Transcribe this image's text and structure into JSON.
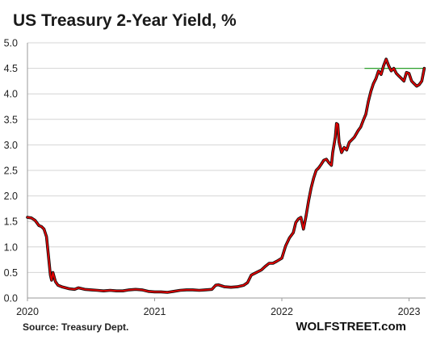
{
  "chart_data": {
    "type": "line",
    "title": "US Treasury 2-Year Yield, %",
    "source": "Source: Treasury Dept.",
    "brand": "WOLFSTREET.com",
    "xlabel": "",
    "ylabel": "",
    "xlim": [
      2020.0,
      2023.13
    ],
    "ylim": [
      0,
      5.0
    ],
    "grid": "horizontal",
    "y_ticks": [
      "0.0",
      "0.5",
      "1.0",
      "1.5",
      "2.0",
      "2.5",
      "3.0",
      "3.5",
      "4.0",
      "4.5",
      "5.0"
    ],
    "x_ticks": [
      {
        "value": 2020,
        "label": "2020"
      },
      {
        "value": 2021,
        "label": "2021"
      },
      {
        "value": 2022,
        "label": "2022"
      },
      {
        "value": 2023,
        "label": "2023"
      }
    ],
    "series": [
      {
        "color": "#e00000",
        "shadow_color": "#111111",
        "points": [
          [
            2020.0,
            1.58
          ],
          [
            2020.03,
            1.57
          ],
          [
            2020.06,
            1.52
          ],
          [
            2020.09,
            1.42
          ],
          [
            2020.11,
            1.4
          ],
          [
            2020.13,
            1.35
          ],
          [
            2020.15,
            1.2
          ],
          [
            2020.16,
            0.95
          ],
          [
            2020.17,
            0.7
          ],
          [
            2020.18,
            0.45
          ],
          [
            2020.19,
            0.35
          ],
          [
            2020.2,
            0.5
          ],
          [
            2020.22,
            0.32
          ],
          [
            2020.24,
            0.25
          ],
          [
            2020.27,
            0.22
          ],
          [
            2020.3,
            0.2
          ],
          [
            2020.33,
            0.18
          ],
          [
            2020.37,
            0.17
          ],
          [
            2020.4,
            0.2
          ],
          [
            2020.45,
            0.17
          ],
          [
            2020.5,
            0.16
          ],
          [
            2020.55,
            0.15
          ],
          [
            2020.6,
            0.14
          ],
          [
            2020.65,
            0.15
          ],
          [
            2020.7,
            0.14
          ],
          [
            2020.75,
            0.14
          ],
          [
            2020.8,
            0.16
          ],
          [
            2020.85,
            0.17
          ],
          [
            2020.9,
            0.16
          ],
          [
            2020.95,
            0.13
          ],
          [
            2021.0,
            0.12
          ],
          [
            2021.05,
            0.12
          ],
          [
            2021.1,
            0.11
          ],
          [
            2021.15,
            0.13
          ],
          [
            2021.2,
            0.15
          ],
          [
            2021.25,
            0.16
          ],
          [
            2021.3,
            0.16
          ],
          [
            2021.35,
            0.15
          ],
          [
            2021.4,
            0.16
          ],
          [
            2021.45,
            0.17
          ],
          [
            2021.48,
            0.25
          ],
          [
            2021.5,
            0.26
          ],
          [
            2021.55,
            0.22
          ],
          [
            2021.6,
            0.21
          ],
          [
            2021.65,
            0.22
          ],
          [
            2021.7,
            0.25
          ],
          [
            2021.73,
            0.3
          ],
          [
            2021.76,
            0.45
          ],
          [
            2021.8,
            0.5
          ],
          [
            2021.84,
            0.55
          ],
          [
            2021.87,
            0.62
          ],
          [
            2021.9,
            0.68
          ],
          [
            2021.93,
            0.68
          ],
          [
            2021.96,
            0.72
          ],
          [
            2022.0,
            0.78
          ],
          [
            2022.03,
            1.02
          ],
          [
            2022.06,
            1.18
          ],
          [
            2022.09,
            1.28
          ],
          [
            2022.11,
            1.48
          ],
          [
            2022.13,
            1.55
          ],
          [
            2022.15,
            1.58
          ],
          [
            2022.17,
            1.35
          ],
          [
            2022.19,
            1.6
          ],
          [
            2022.21,
            1.9
          ],
          [
            2022.23,
            2.15
          ],
          [
            2022.25,
            2.35
          ],
          [
            2022.27,
            2.5
          ],
          [
            2022.29,
            2.55
          ],
          [
            2022.31,
            2.62
          ],
          [
            2022.33,
            2.7
          ],
          [
            2022.35,
            2.72
          ],
          [
            2022.37,
            2.65
          ],
          [
            2022.39,
            2.6
          ],
          [
            2022.4,
            2.85
          ],
          [
            2022.42,
            3.15
          ],
          [
            2022.43,
            3.42
          ],
          [
            2022.44,
            3.4
          ],
          [
            2022.45,
            3.05
          ],
          [
            2022.47,
            2.85
          ],
          [
            2022.49,
            2.95
          ],
          [
            2022.51,
            2.9
          ],
          [
            2022.53,
            3.05
          ],
          [
            2022.55,
            3.1
          ],
          [
            2022.57,
            3.15
          ],
          [
            2022.6,
            3.28
          ],
          [
            2022.62,
            3.35
          ],
          [
            2022.64,
            3.48
          ],
          [
            2022.66,
            3.6
          ],
          [
            2022.68,
            3.85
          ],
          [
            2022.7,
            4.05
          ],
          [
            2022.72,
            4.2
          ],
          [
            2022.74,
            4.3
          ],
          [
            2022.76,
            4.45
          ],
          [
            2022.78,
            4.38
          ],
          [
            2022.8,
            4.55
          ],
          [
            2022.82,
            4.68
          ],
          [
            2022.84,
            4.55
          ],
          [
            2022.86,
            4.45
          ],
          [
            2022.88,
            4.5
          ],
          [
            2022.9,
            4.4
          ],
          [
            2022.92,
            4.35
          ],
          [
            2022.94,
            4.3
          ],
          [
            2022.96,
            4.25
          ],
          [
            2022.98,
            4.42
          ],
          [
            2023.0,
            4.4
          ],
          [
            2023.02,
            4.25
          ],
          [
            2023.04,
            4.2
          ],
          [
            2023.06,
            4.15
          ],
          [
            2023.08,
            4.18
          ],
          [
            2023.1,
            4.25
          ],
          [
            2023.12,
            4.5
          ]
        ]
      }
    ],
    "reference_lines": [
      {
        "value": 4.5,
        "from": 2022.65,
        "to": 2023.13,
        "color": "#2ca02c"
      }
    ]
  }
}
